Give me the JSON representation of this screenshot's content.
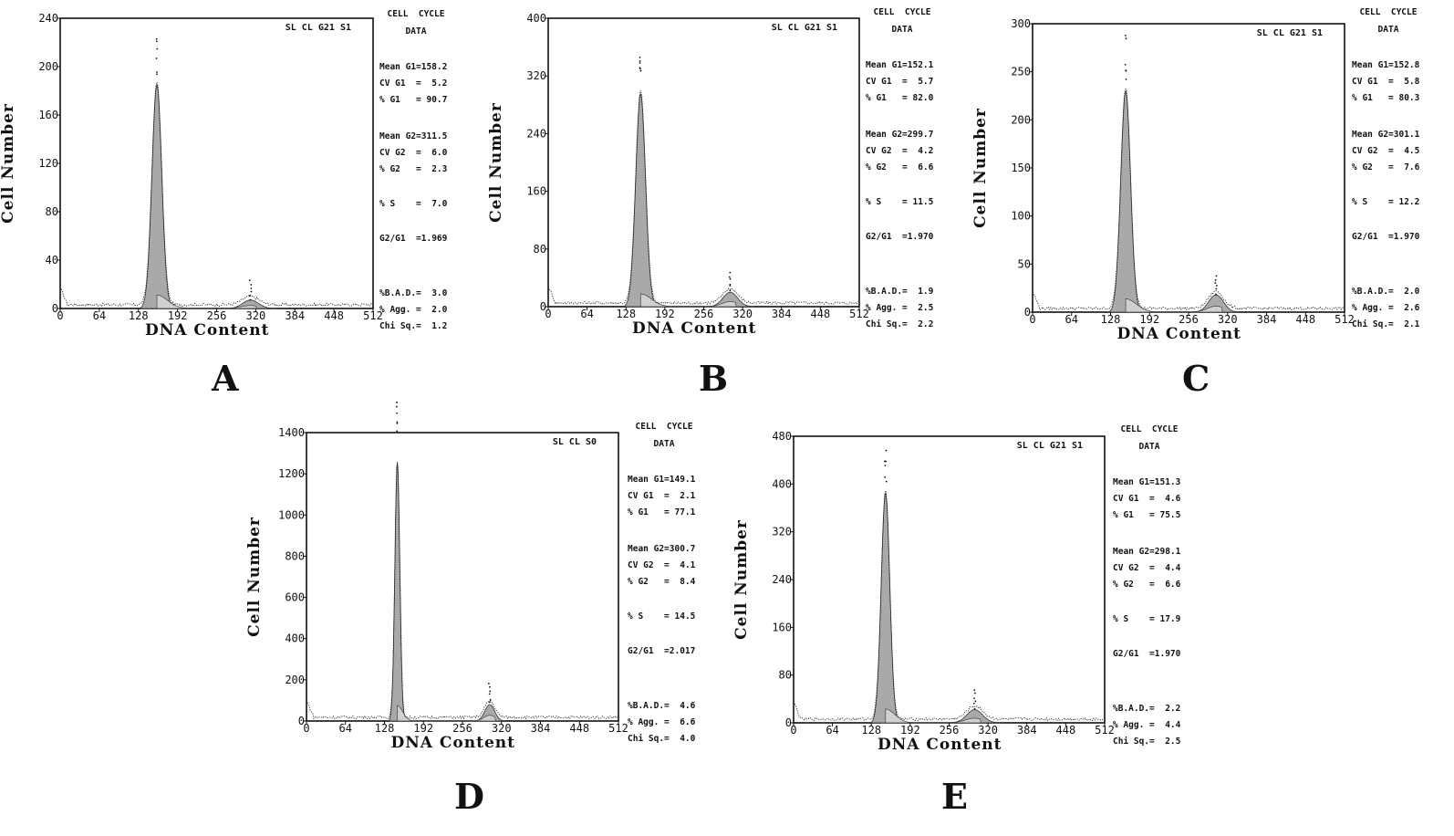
{
  "chart_data": [
    {
      "type": "histogram",
      "panel_label": "A",
      "sample_tag": "SL CL G21 S1",
      "xlabel": "DNA Content",
      "ylabel": "Cell Number",
      "x_ticks": [
        0,
        64,
        128,
        192,
        256,
        320,
        384,
        448,
        512
      ],
      "y_ticks": [
        0,
        40,
        80,
        120,
        160,
        200,
        240
      ],
      "xlim": [
        0,
        512
      ],
      "ylim": [
        0,
        240
      ],
      "peaks": [
        {
          "phase": "G1",
          "center": 158.2,
          "height": 185,
          "sigma": 8
        },
        {
          "phase": "G2",
          "center": 311.5,
          "height": 7,
          "sigma": 13
        }
      ],
      "stats_header": [
        "CELL  CYCLE",
        "DATA"
      ],
      "stats": [
        "Mean G1=158.2",
        "CV G1  =  5.2",
        "% G1   = 90.7",
        "Mean G2=311.5",
        "CV G2  =  6.0",
        "% G2   =  2.3",
        "% S    =  7.0",
        "G2/G1  =1.969",
        "%B.A.D.=  3.0",
        "% Agg. =  2.0",
        "Chi Sq.=  1.2"
      ]
    },
    {
      "type": "histogram",
      "panel_label": "B",
      "sample_tag": "SL CL G21 S1",
      "xlabel": "DNA Content",
      "ylabel": "Cell Number",
      "x_ticks": [
        0,
        64,
        128,
        192,
        256,
        320,
        384,
        448,
        512
      ],
      "y_ticks": [
        0,
        80,
        160,
        240,
        320,
        400
      ],
      "xlim": [
        0,
        512
      ],
      "ylim": [
        0,
        400
      ],
      "peaks": [
        {
          "phase": "G1",
          "center": 152.1,
          "height": 295,
          "sigma": 8
        },
        {
          "phase": "G2",
          "center": 299.7,
          "height": 20,
          "sigma": 12
        }
      ],
      "stats_header": [
        "CELL  CYCLE",
        "DATA"
      ],
      "stats": [
        "Mean G1=152.1",
        "CV G1  =  5.7",
        "% G1   = 82.0",
        "Mean G2=299.7",
        "CV G2  =  4.2",
        "% G2   =  6.6",
        "% S    = 11.5",
        "G2/G1  =1.970",
        "%B.A.D.=  1.9",
        "% Agg. =  2.5",
        "Chi Sq.=  2.2"
      ]
    },
    {
      "type": "histogram",
      "panel_label": "C",
      "sample_tag": "SL CL G21 S1",
      "xlabel": "DNA Content",
      "ylabel": "Cell Number",
      "x_ticks": [
        0,
        64,
        128,
        192,
        256,
        320,
        384,
        448,
        512
      ],
      "y_ticks": [
        0,
        50,
        100,
        150,
        200,
        250,
        300
      ],
      "xlim": [
        0,
        512
      ],
      "ylim": [
        0,
        300
      ],
      "peaks": [
        {
          "phase": "G1",
          "center": 152.8,
          "height": 230,
          "sigma": 8
        },
        {
          "phase": "G2",
          "center": 301.1,
          "height": 18,
          "sigma": 12
        }
      ],
      "stats_header": [
        "CELL  CYCLE",
        "DATA"
      ],
      "stats": [
        "Mean G1=152.8",
        "CV G1  =  5.8",
        "% G1   = 80.3",
        "Mean G2=301.1",
        "CV G2  =  4.5",
        "% G2   =  7.6",
        "% S    = 12.2",
        "G2/G1  =1.970",
        "%B.A.D.=  2.0",
        "% Agg. =  2.6",
        "Chi Sq.=  2.1"
      ]
    },
    {
      "type": "histogram",
      "panel_label": "D",
      "sample_tag": "SL CL S0",
      "xlabel": "DNA Content",
      "ylabel": "Cell Number",
      "x_ticks": [
        0,
        64,
        128,
        192,
        256,
        320,
        384,
        448,
        512
      ],
      "y_ticks": [
        0,
        200,
        400,
        600,
        800,
        1000,
        1200,
        1400
      ],
      "xlim": [
        0,
        512
      ],
      "ylim": [
        0,
        1400
      ],
      "peaks": [
        {
          "phase": "G1",
          "center": 149.1,
          "height": 1260,
          "sigma": 4
        },
        {
          "phase": "G2",
          "center": 300.7,
          "height": 80,
          "sigma": 8
        }
      ],
      "stats_header": [
        "CELL  CYCLE",
        "DATA"
      ],
      "stats": [
        "Mean G1=149.1",
        "CV G1  =  2.1",
        "% G1   = 77.1",
        "Mean G2=300.7",
        "CV G2  =  4.1",
        "% G2   =  8.4",
        "% S    = 14.5",
        "G2/G1  =2.017",
        "%B.A.D.=  4.6",
        "% Agg. =  6.6",
        "Chi Sq.=  4.0"
      ]
    },
    {
      "type": "histogram",
      "panel_label": "E",
      "sample_tag": "SL CL G21 S1",
      "xlabel": "DNA Content",
      "ylabel": "Cell Number",
      "x_ticks": [
        0,
        64,
        128,
        192,
        256,
        320,
        384,
        448,
        512
      ],
      "y_ticks": [
        0,
        80,
        160,
        240,
        320,
        400,
        480
      ],
      "xlim": [
        0,
        512
      ],
      "ylim": [
        0,
        480
      ],
      "peaks": [
        {
          "phase": "G1",
          "center": 151.3,
          "height": 385,
          "sigma": 7
        },
        {
          "phase": "G2",
          "center": 298.1,
          "height": 22,
          "sigma": 13
        }
      ],
      "stats_header": [
        "CELL  CYCLE",
        "DATA"
      ],
      "stats": [
        "Mean G1=151.3",
        "CV G1  =  4.6",
        "% G1   = 75.5",
        "Mean G2=298.1",
        "CV G2  =  4.4",
        "% G2   =  6.6",
        "% S    = 17.9",
        "G2/G1  =1.970",
        "%B.A.D.=  2.2",
        "% Agg. =  4.4",
        "Chi Sq.=  2.5"
      ]
    }
  ]
}
